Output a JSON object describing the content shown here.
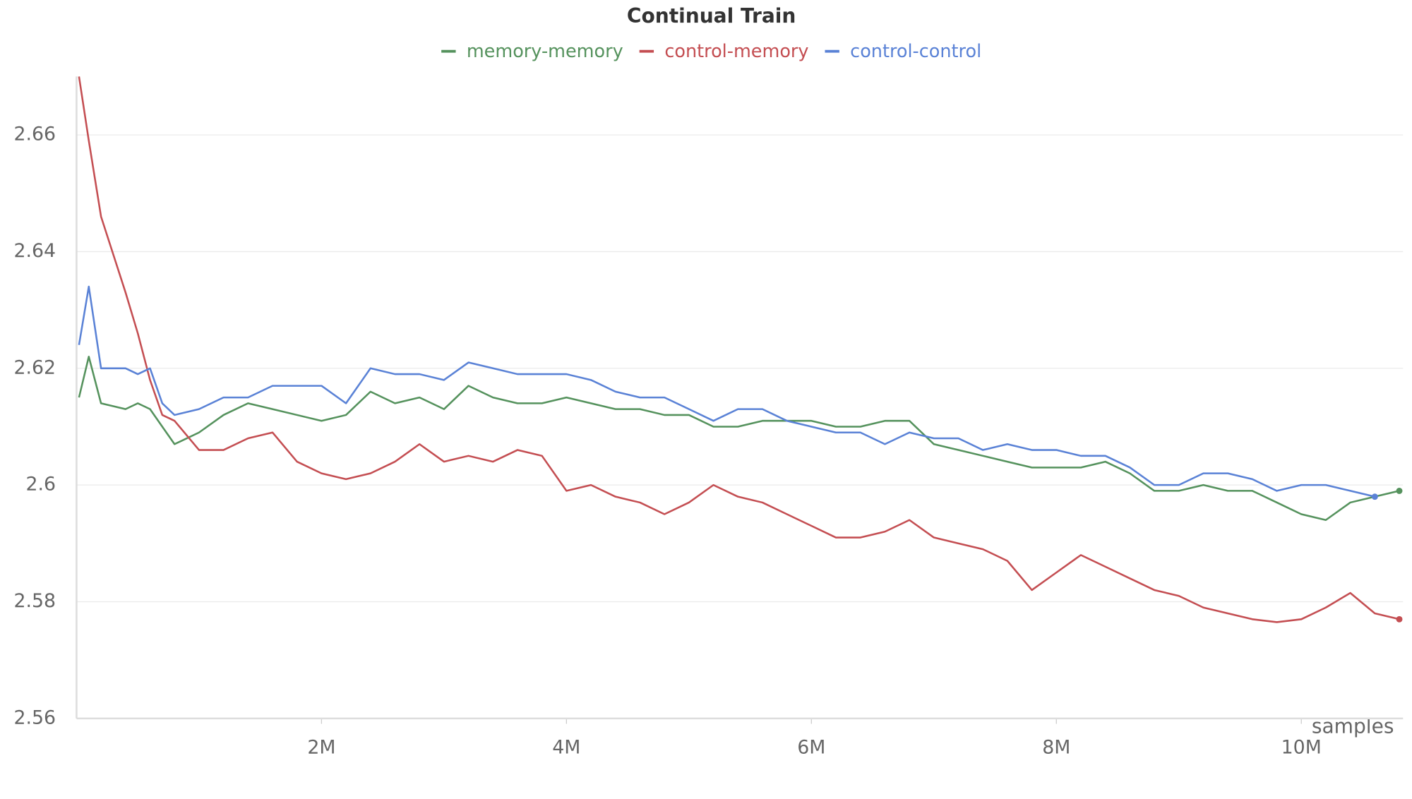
{
  "chart_data": {
    "type": "line",
    "title": "Continual Train",
    "x_label": "samples",
    "x": [
      20000,
      100000,
      200000,
      400000,
      500000,
      600000,
      700000,
      800000,
      1000000,
      1200000,
      1400000,
      1600000,
      1800000,
      2000000,
      2200000,
      2400000,
      2600000,
      2800000,
      3000000,
      3200000,
      3400000,
      3600000,
      3800000,
      4000000,
      4200000,
      4400000,
      4600000,
      4800000,
      5000000,
      5200000,
      5400000,
      5600000,
      5800000,
      6000000,
      6200000,
      6400000,
      6600000,
      6800000,
      7000000,
      7200000,
      7400000,
      7600000,
      7800000,
      8000000,
      8200000,
      8400000,
      8600000,
      8800000,
      9000000,
      9200000,
      9400000,
      9600000,
      9800000,
      10000000,
      10200000,
      10400000,
      10600000,
      10800000
    ],
    "series": [
      {
        "name": "memory-memory",
        "color": "#55925d",
        "values": [
          2.615,
          2.622,
          2.614,
          2.613,
          2.614,
          2.613,
          2.61,
          2.607,
          2.609,
          2.612,
          2.614,
          2.613,
          2.612,
          2.611,
          2.612,
          2.616,
          2.614,
          2.615,
          2.613,
          2.617,
          2.615,
          2.614,
          2.614,
          2.615,
          2.614,
          2.613,
          2.613,
          2.612,
          2.612,
          2.61,
          2.61,
          2.611,
          2.611,
          2.611,
          2.61,
          2.61,
          2.611,
          2.611,
          2.607,
          2.606,
          2.605,
          2.604,
          2.603,
          2.603,
          2.603,
          2.604,
          2.602,
          2.599,
          2.599,
          2.6,
          2.599,
          2.599,
          2.597,
          2.595,
          2.594,
          2.597,
          2.598,
          2.599
        ]
      },
      {
        "name": "control-memory",
        "color": "#c44e52",
        "values": [
          2.67,
          2.659,
          2.646,
          2.633,
          2.626,
          2.618,
          2.612,
          2.611,
          2.606,
          2.606,
          2.608,
          2.609,
          2.604,
          2.602,
          2.601,
          2.602,
          2.604,
          2.607,
          2.604,
          2.605,
          2.604,
          2.606,
          2.605,
          2.599,
          2.6,
          2.598,
          2.597,
          2.595,
          2.597,
          2.6,
          2.598,
          2.597,
          2.595,
          2.593,
          2.591,
          2.591,
          2.592,
          2.594,
          2.591,
          2.59,
          2.589,
          2.587,
          2.582,
          2.585,
          2.588,
          2.586,
          2.584,
          2.582,
          2.581,
          2.579,
          2.578,
          2.577,
          2.5765,
          2.577,
          2.579,
          2.5815,
          2.578,
          2.577
        ]
      },
      {
        "name": "control-control",
        "color": "#5a82d6",
        "values": [
          2.624,
          2.634,
          2.62,
          2.62,
          2.619,
          2.62,
          2.614,
          2.612,
          2.613,
          2.615,
          2.615,
          2.617,
          2.617,
          2.617,
          2.614,
          2.62,
          2.619,
          2.619,
          2.618,
          2.621,
          2.62,
          2.619,
          2.619,
          2.619,
          2.618,
          2.616,
          2.615,
          2.615,
          2.613,
          2.611,
          2.613,
          2.613,
          2.611,
          2.61,
          2.609,
          2.609,
          2.607,
          2.609,
          2.608,
          2.608,
          2.606,
          2.607,
          2.606,
          2.606,
          2.605,
          2.605,
          2.603,
          2.6,
          2.6,
          2.602,
          2.602,
          2.601,
          2.599,
          2.6,
          2.6,
          2.599,
          2.598,
          null
        ]
      }
    ],
    "xlim": [
      0,
      10830000
    ],
    "ylim": [
      2.56,
      2.67
    ],
    "xticks": [
      {
        "value": 2000000,
        "label": "2M"
      },
      {
        "value": 4000000,
        "label": "4M"
      },
      {
        "value": 6000000,
        "label": "6M"
      },
      {
        "value": 8000000,
        "label": "8M"
      },
      {
        "value": 10000000,
        "label": "10M"
      }
    ],
    "yticks": [
      2.56,
      2.58,
      2.6,
      2.62,
      2.64,
      2.66
    ],
    "grid": true,
    "legend": "top"
  }
}
